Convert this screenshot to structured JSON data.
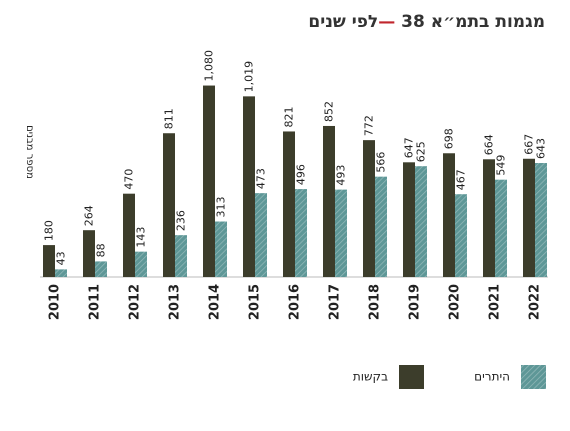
{
  "chart_data": {
    "type": "bar",
    "title": [
      "מגמות בתמ״א 38 ",
      "—",
      "לפי שנים"
    ],
    "y_label": "מספר מבנים",
    "categories": [
      "2010",
      "2011",
      "2012",
      "2013",
      "2014",
      "2015",
      "2016",
      "2017",
      "2018",
      "2019",
      "2020",
      "2021",
      "2022"
    ],
    "series": [
      {
        "name": "בקשות",
        "color": "#3c3d2b",
        "hatch": false,
        "values": [
          180,
          264,
          470,
          811,
          1080,
          1019,
          821,
          852,
          772,
          647,
          698,
          664,
          667
        ],
        "value_labels": [
          "180",
          "264",
          "470",
          "811",
          "1,080",
          "1,019",
          "821",
          "852",
          "772",
          "647",
          "698",
          "664",
          "667"
        ]
      },
      {
        "name": "היתרים",
        "color": "#5e9797",
        "hatch": true,
        "values": [
          43,
          88,
          143,
          236,
          313,
          473,
          496,
          493,
          566,
          625,
          467,
          549,
          643
        ]
      }
    ],
    "ylim": [
      0,
      1100
    ]
  }
}
